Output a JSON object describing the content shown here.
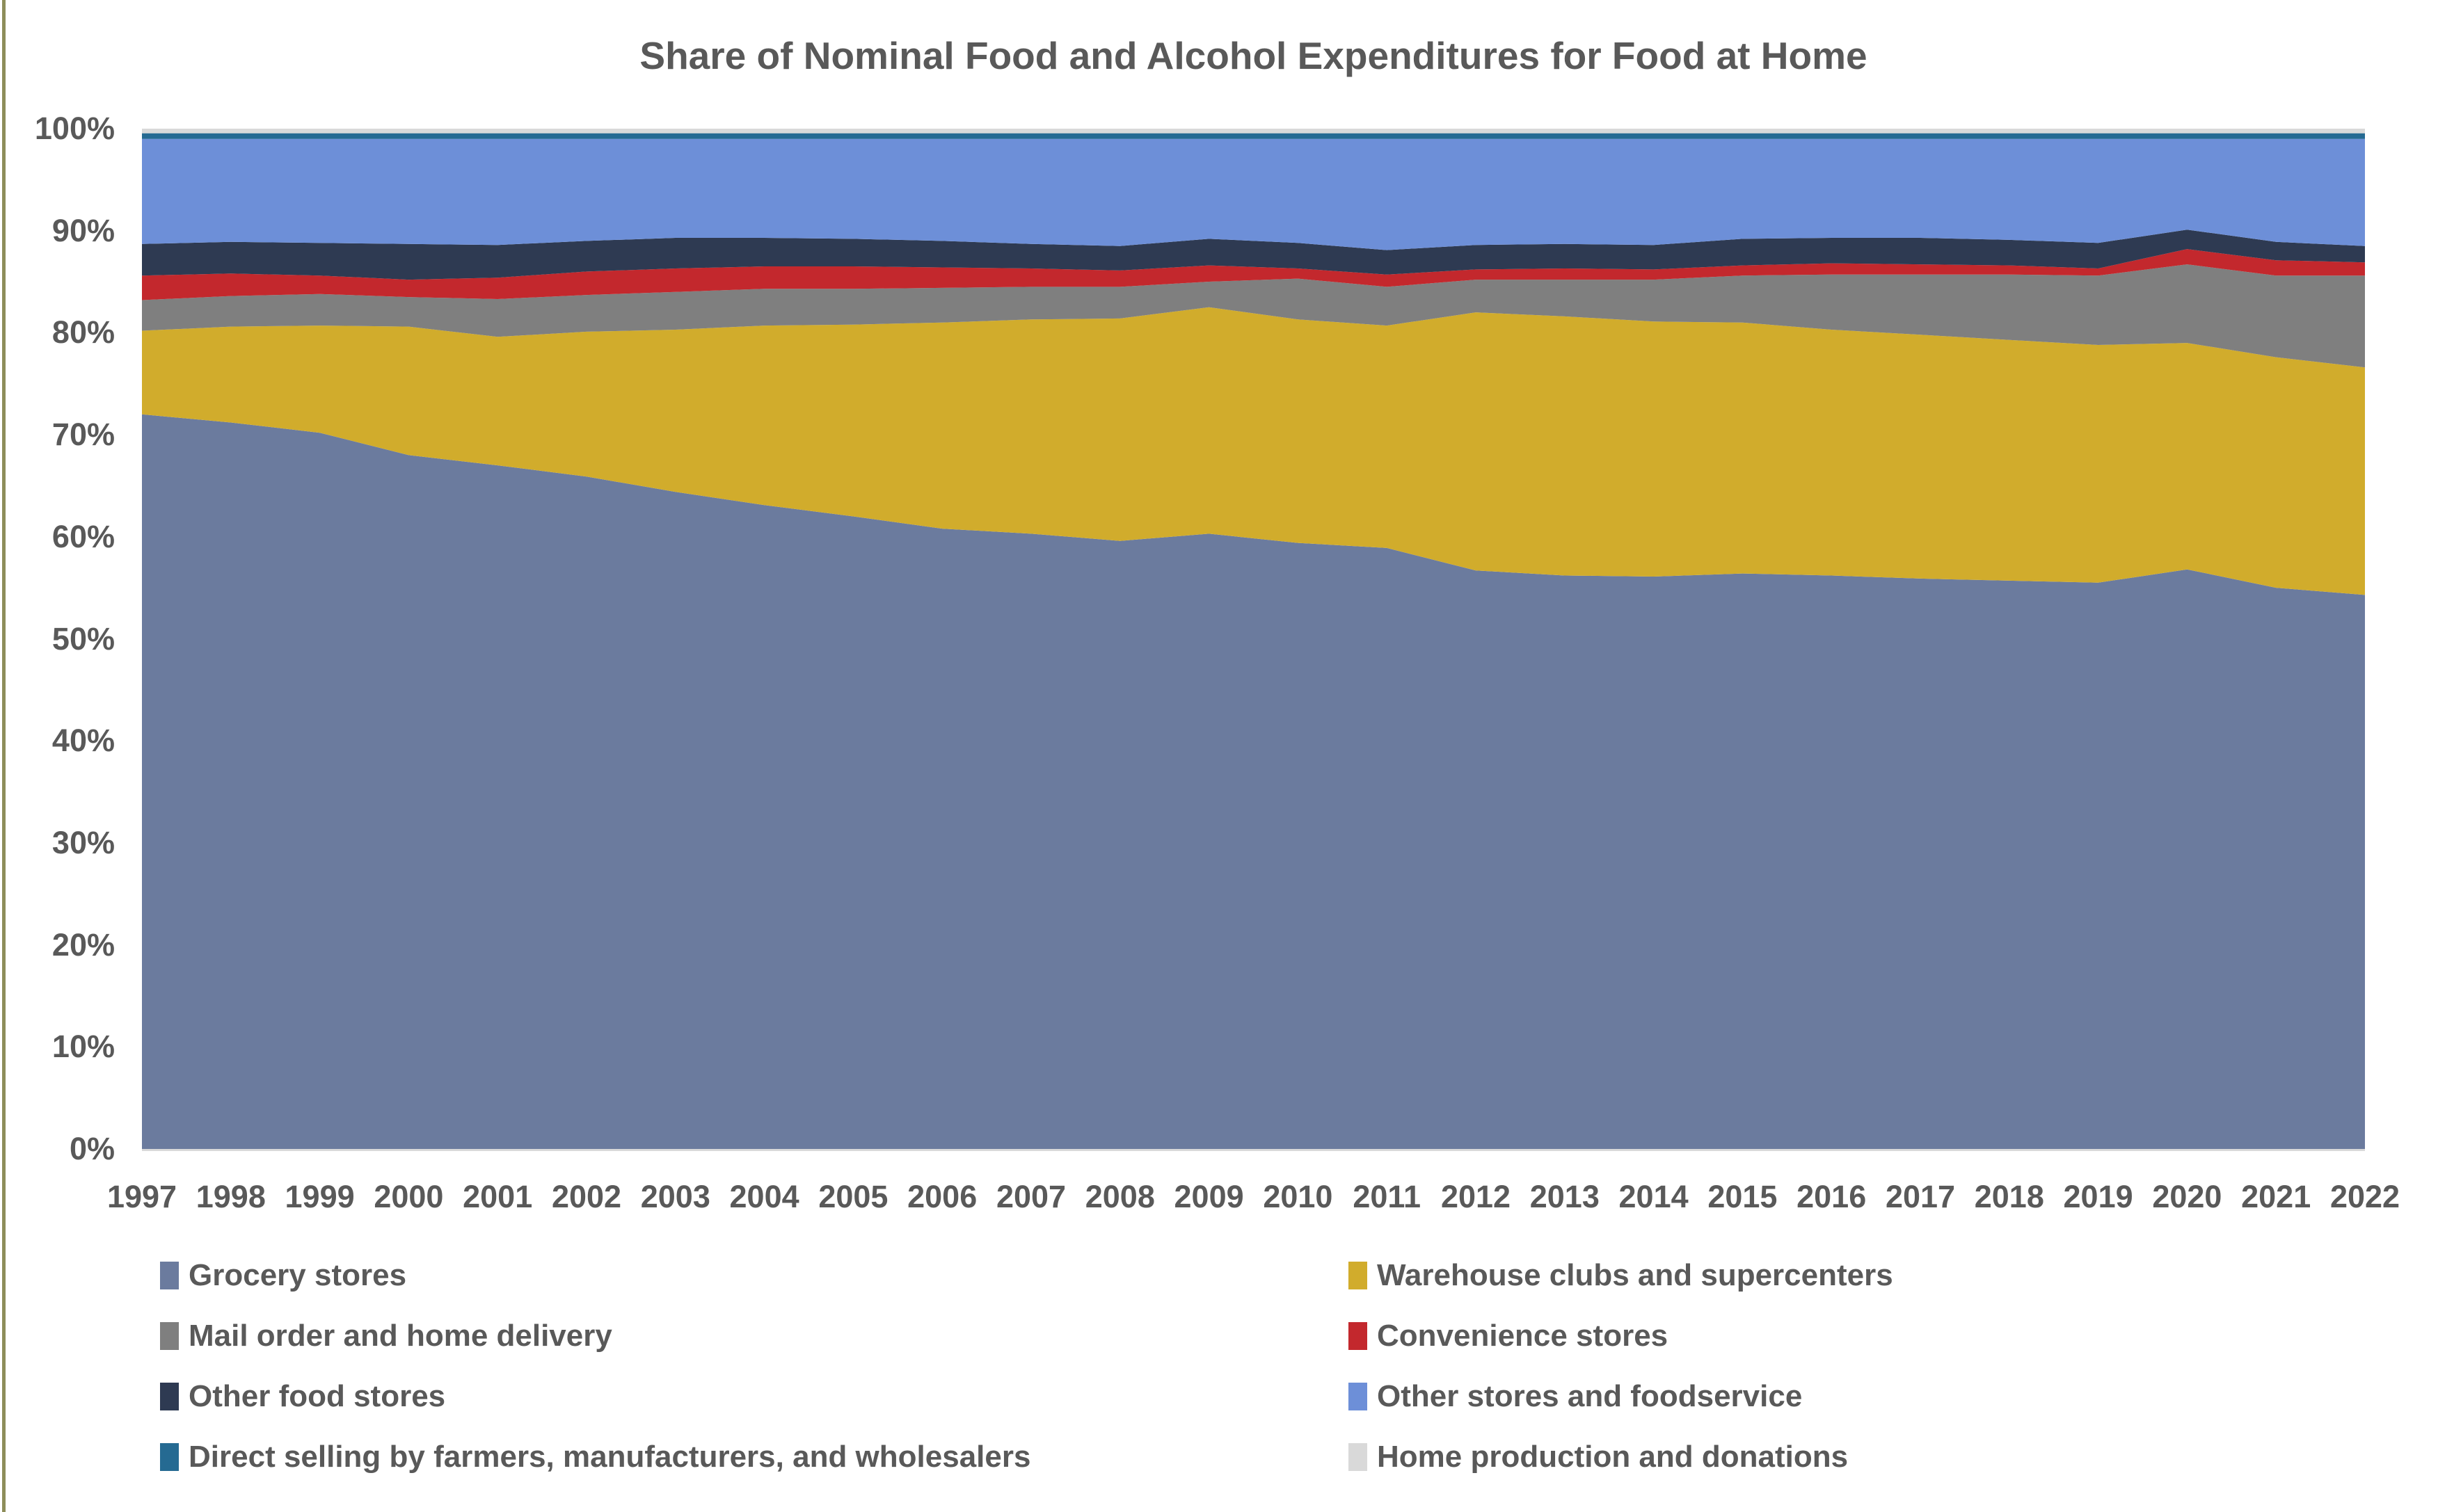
{
  "page": {
    "background_color": "#FFFFFF",
    "left_border_color": "#8E8E5A",
    "text_color": "#595959"
  },
  "chart_data": {
    "type": "area",
    "stacked": true,
    "title": "Share of Nominal Food and Alcohol Expenditures for Food at Home",
    "grid": false,
    "legend_position": "bottom-two-columns",
    "ylim": [
      0,
      100
    ],
    "y_tick_labels": [
      "0%",
      "10%",
      "20%",
      "30%",
      "40%",
      "50%",
      "60%",
      "70%",
      "80%",
      "90%",
      "100%"
    ],
    "x": [
      1997,
      1998,
      1999,
      2000,
      2001,
      2002,
      2003,
      2004,
      2005,
      2006,
      2007,
      2008,
      2009,
      2010,
      2011,
      2012,
      2013,
      2014,
      2015,
      2016,
      2017,
      2018,
      2019,
      2020,
      2021,
      2022
    ],
    "x_labels": [
      "1997",
      "1998",
      "1999",
      "2000",
      "2001",
      "2002",
      "2003",
      "2004",
      "2005",
      "2006",
      "2007",
      "2008",
      "2009",
      "2010",
      "2011",
      "2012",
      "2013",
      "2014",
      "2015",
      "2016",
      "2017",
      "2018",
      "2019",
      "2020",
      "2021",
      "2022"
    ],
    "series": [
      {
        "name": "Grocery stores",
        "color": "#6B7B9E",
        "values": [
          72.0,
          71.2,
          70.2,
          68.0,
          67.0,
          65.9,
          64.4,
          63.1,
          62.0,
          60.8,
          60.3,
          59.6,
          60.3,
          59.4,
          58.9,
          56.7,
          56.2,
          56.1,
          56.4,
          56.2,
          55.9,
          55.7,
          55.5,
          56.8,
          55.0,
          54.3
        ]
      },
      {
        "name": "Warehouse clubs and supercenters",
        "color": "#D1AC2C",
        "values": [
          8.2,
          9.4,
          10.5,
          12.6,
          12.6,
          14.2,
          15.9,
          17.6,
          18.8,
          20.2,
          21.0,
          21.8,
          22.2,
          21.9,
          21.8,
          25.3,
          25.4,
          25.0,
          24.6,
          24.1,
          23.9,
          23.6,
          23.3,
          22.2,
          22.6,
          22.3
        ]
      },
      {
        "name": "Mail order and home delivery",
        "color": "#7F7F7F",
        "values": [
          3.0,
          3.0,
          3.1,
          2.9,
          3.7,
          3.6,
          3.7,
          3.6,
          3.5,
          3.4,
          3.2,
          3.1,
          2.5,
          4.0,
          3.8,
          3.2,
          3.6,
          4.1,
          4.6,
          5.4,
          5.9,
          6.4,
          6.8,
          7.7,
          8.0,
          9.0
        ]
      },
      {
        "name": "Convenience stores",
        "color": "#C3282D",
        "values": [
          2.4,
          2.2,
          1.8,
          1.7,
          2.1,
          2.3,
          2.3,
          2.2,
          2.2,
          2.0,
          1.8,
          1.6,
          1.6,
          1.0,
          1.2,
          1.0,
          1.1,
          1.0,
          1.0,
          1.1,
          1.0,
          0.9,
          0.7,
          1.5,
          1.5,
          1.3
        ]
      },
      {
        "name": "Other food stores",
        "color": "#2E3A52",
        "values": [
          3.1,
          3.1,
          3.2,
          3.5,
          3.2,
          3.0,
          3.0,
          2.8,
          2.7,
          2.6,
          2.4,
          2.4,
          2.6,
          2.5,
          2.4,
          2.4,
          2.4,
          2.4,
          2.6,
          2.5,
          2.6,
          2.5,
          2.5,
          1.9,
          1.8,
          1.6
        ]
      },
      {
        "name": "Other stores and foodservice",
        "color": "#6D8FD8",
        "values": [
          10.3,
          10.1,
          10.2,
          10.3,
          10.4,
          10.0,
          9.7,
          9.7,
          9.8,
          10.0,
          10.3,
          10.5,
          9.8,
          10.2,
          10.9,
          10.4,
          10.3,
          10.4,
          9.8,
          9.7,
          9.7,
          9.9,
          10.2,
          8.9,
          10.1,
          10.5
        ]
      },
      {
        "name": "Direct selling by farmers, manufacturers, and wholesalers",
        "color": "#256A92",
        "values": [
          0.55,
          0.55,
          0.55,
          0.55,
          0.55,
          0.55,
          0.55,
          0.55,
          0.55,
          0.55,
          0.55,
          0.55,
          0.55,
          0.55,
          0.55,
          0.55,
          0.55,
          0.55,
          0.55,
          0.55,
          0.55,
          0.55,
          0.55,
          0.55,
          0.55,
          0.55
        ]
      },
      {
        "name": "Home production and donations",
        "color": "#D9D9D9",
        "values": [
          0.45,
          0.45,
          0.45,
          0.45,
          0.45,
          0.45,
          0.45,
          0.45,
          0.45,
          0.45,
          0.45,
          0.45,
          0.45,
          0.45,
          0.45,
          0.45,
          0.45,
          0.45,
          0.45,
          0.45,
          0.45,
          0.45,
          0.45,
          0.45,
          0.45,
          0.45
        ]
      }
    ]
  },
  "legend": {
    "columns": [
      {
        "series_indexes": [
          0,
          2,
          4,
          6
        ]
      },
      {
        "series_indexes": [
          1,
          3,
          5,
          7
        ]
      }
    ]
  }
}
